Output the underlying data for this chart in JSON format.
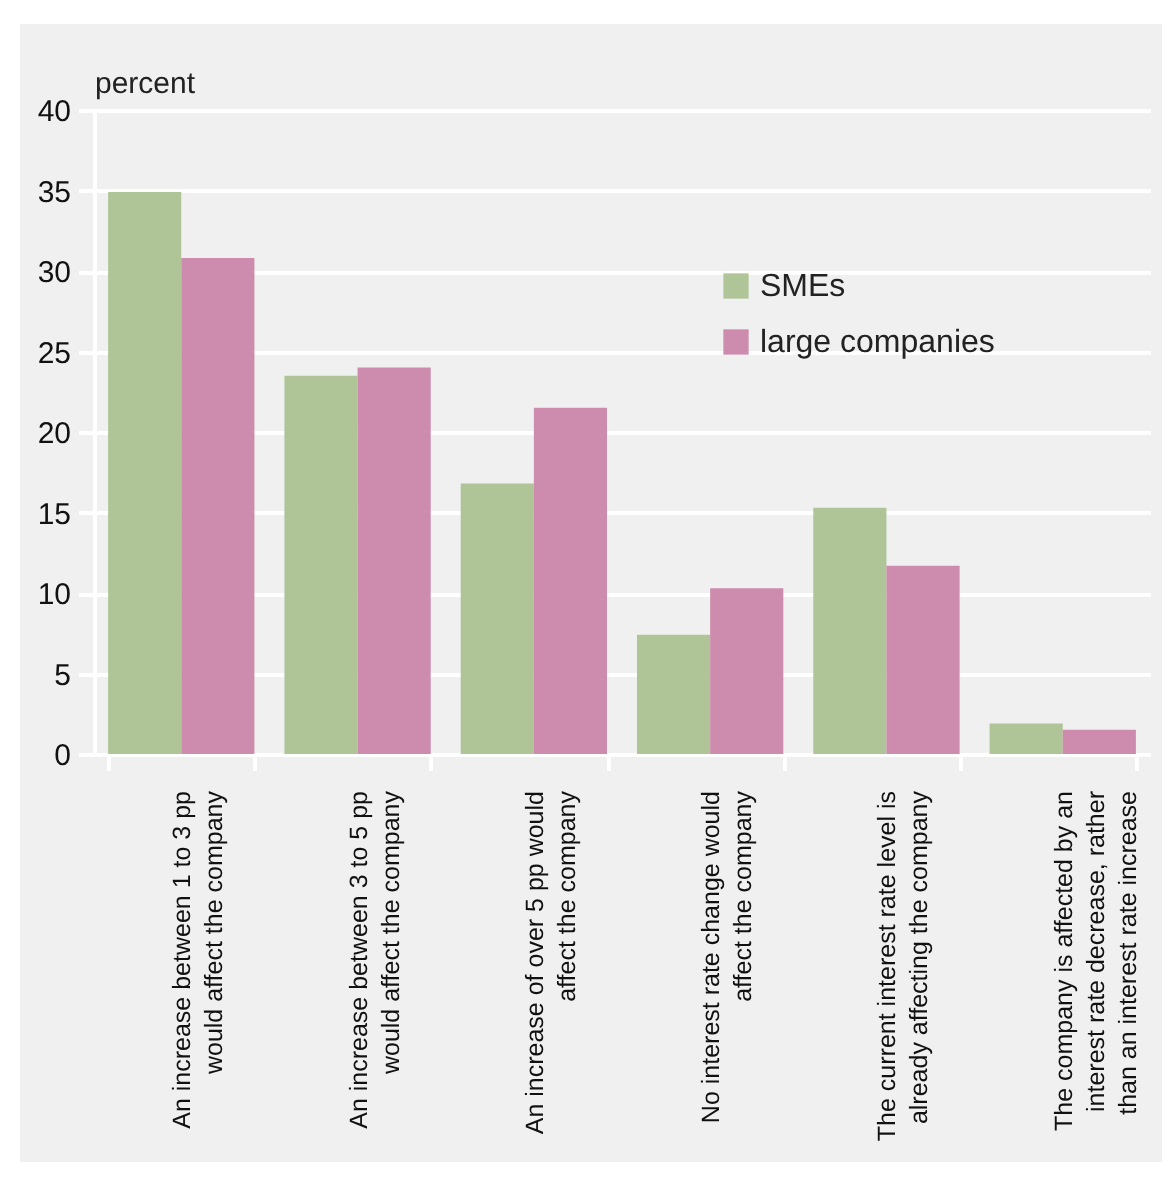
{
  "chart_data": {
    "type": "bar",
    "ylabel": "percent",
    "categories": [
      "An increase between 1 to 3 pp would affect the company",
      "An increase between 3 to 5 pp would affect the company",
      "An increase of over 5 pp would affect the company",
      "No interest rate change would affect the company",
      "The current interest rate level is already affecting the company",
      "The company is affected by an interest rate decrease, rather than an interest rate increase"
    ],
    "series": [
      {
        "name": "SMEs",
        "color": "#afc598",
        "values": [
          34.9,
          23.5,
          16.8,
          7.4,
          15.3,
          1.9
        ]
      },
      {
        "name": "large companies",
        "color": "#cd8cad",
        "values": [
          30.8,
          24.0,
          21.5,
          10.3,
          11.7,
          1.5
        ]
      }
    ],
    "ylim": [
      0,
      40
    ],
    "yticks": [
      0,
      5,
      10,
      15,
      20,
      25,
      30,
      35,
      40
    ],
    "grid": "y",
    "legend": "top right"
  }
}
